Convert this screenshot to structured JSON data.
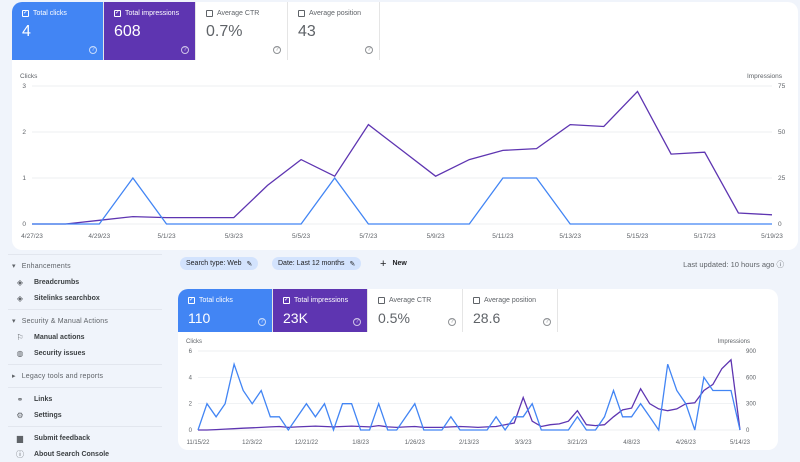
{
  "colors": {
    "clicks": "#4285f4",
    "impressions": "#5e35b1",
    "background": "#f0f4fb"
  },
  "top_metrics": [
    {
      "label": "Total clicks",
      "value": "4",
      "checked": true
    },
    {
      "label": "Total impressions",
      "value": "608",
      "checked": true
    },
    {
      "label": "Average CTR",
      "value": "0.7%",
      "checked": false
    },
    {
      "label": "Average position",
      "value": "43",
      "checked": false
    }
  ],
  "bottom_metrics": [
    {
      "label": "Total clicks",
      "value": "110",
      "checked": true
    },
    {
      "label": "Total impressions",
      "value": "23K",
      "checked": true
    },
    {
      "label": "Average CTR",
      "value": "0.5%",
      "checked": false
    },
    {
      "label": "Average position",
      "value": "28.6",
      "checked": false
    }
  ],
  "sidebar": {
    "enhancements": "Enhancements",
    "breadcrumbs": "Breadcrumbs",
    "sitelinks": "Sitelinks searchbox",
    "security": "Security & Manual Actions",
    "manual": "Manual actions",
    "issues": "Security issues",
    "legacy": "Legacy tools and reports",
    "links": "Links",
    "settings": "Settings",
    "feedback": "Submit feedback",
    "about": "About Search Console"
  },
  "filters": {
    "search_type": "Search type: Web",
    "date": "Date: Last 12 months",
    "new": "New",
    "last_updated": "Last updated: 10 hours ago"
  },
  "chart_data": [
    {
      "type": "line",
      "left_label": "Clicks",
      "right_label": "Impressions",
      "ylim_left": [
        0,
        3
      ],
      "yticks_left": [
        0,
        1,
        2,
        3
      ],
      "ylim_right": [
        0,
        75
      ],
      "yticks_right": [
        0,
        25,
        50,
        75
      ],
      "grid": true,
      "x": [
        "4/27/23",
        "4/28/23",
        "4/29/23",
        "4/30/23",
        "5/1/23",
        "5/2/23",
        "5/3/23",
        "5/4/23",
        "5/5/23",
        "5/6/23",
        "5/7/23",
        "5/8/23",
        "5/9/23",
        "5/10/23",
        "5/11/23",
        "5/12/23",
        "5/13/23",
        "5/14/23",
        "5/15/23",
        "5/16/23",
        "5/17/23",
        "5/18/23",
        "5/19/23"
      ],
      "xtick_labels": [
        "4/27/23",
        "4/29/23",
        "5/1/23",
        "5/3/23",
        "5/5/23",
        "5/7/23",
        "5/9/23",
        "5/11/23",
        "5/13/23",
        "5/15/23",
        "5/17/23",
        "5/19/23"
      ],
      "series": [
        {
          "name": "Clicks",
          "axis": "left",
          "values": [
            0,
            0,
            0,
            1,
            0,
            0,
            0,
            0,
            0,
            1,
            0,
            0,
            0,
            0,
            1,
            1,
            0,
            0,
            0,
            0,
            0,
            0,
            0
          ]
        },
        {
          "name": "Impressions",
          "axis": "right",
          "values": [
            0,
            0,
            2,
            4,
            3.5,
            3.5,
            3.5,
            21,
            35,
            26,
            54,
            40,
            26,
            35,
            40,
            41,
            54,
            53,
            72,
            38,
            39,
            6,
            5
          ]
        }
      ]
    },
    {
      "type": "line",
      "left_label": "Clicks",
      "right_label": "Impressions",
      "ylim_left": [
        0,
        6
      ],
      "yticks_left": [
        0,
        2,
        4,
        6
      ],
      "ylim_right": [
        0,
        900
      ],
      "yticks_right": [
        0,
        300,
        600,
        900
      ],
      "grid": true,
      "x": [
        "11/15/22",
        "11/18/22",
        "11/21/22",
        "11/24/22",
        "11/27/22",
        "11/30/22",
        "12/3/22",
        "12/6/22",
        "12/9/22",
        "12/12/22",
        "12/15/22",
        "12/18/22",
        "12/21/22",
        "12/24/22",
        "12/27/22",
        "12/30/22",
        "1/2/23",
        "1/5/23",
        "1/8/23",
        "1/11/23",
        "1/14/23",
        "1/17/23",
        "1/20/23",
        "1/23/23",
        "1/26/23",
        "1/29/23",
        "2/1/23",
        "2/4/23",
        "2/7/23",
        "2/10/23",
        "2/13/23",
        "2/16/23",
        "2/19/23",
        "2/22/23",
        "2/25/23",
        "2/28/23",
        "3/3/23",
        "3/6/23",
        "3/9/23",
        "3/12/23",
        "3/15/23",
        "3/18/23",
        "3/21/23",
        "3/24/23",
        "3/27/23",
        "3/30/23",
        "4/2/23",
        "4/5/23",
        "4/8/23",
        "4/11/23",
        "4/14/23",
        "4/17/23",
        "4/20/23",
        "4/23/23",
        "4/26/23",
        "4/29/23",
        "5/2/23",
        "5/5/23",
        "5/8/23",
        "5/11/23",
        "5/14/23"
      ],
      "xtick_labels": [
        "11/15/22",
        "12/3/22",
        "12/21/22",
        "1/8/23",
        "1/26/23",
        "2/13/23",
        "3/3/23",
        "3/21/23",
        "4/8/23",
        "4/26/23",
        "5/14/23"
      ],
      "series": [
        {
          "name": "Clicks",
          "axis": "left",
          "values": [
            0,
            2,
            1,
            2,
            5,
            3,
            2,
            3,
            1,
            1,
            0,
            1,
            2,
            1,
            2,
            0,
            2,
            2,
            0,
            0,
            2,
            0,
            0,
            1,
            2,
            0,
            0,
            0,
            1,
            0,
            0,
            0,
            0,
            1,
            0,
            1,
            1,
            2,
            0,
            0,
            0,
            0,
            1,
            0,
            0,
            1,
            3,
            1,
            1,
            2,
            1,
            0,
            5,
            3,
            2,
            0,
            4,
            3,
            3,
            3,
            0
          ]
        },
        {
          "name": "Impressions",
          "axis": "right",
          "values": [
            0,
            0,
            5,
            10,
            15,
            20,
            25,
            30,
            35,
            40,
            30,
            35,
            40,
            45,
            40,
            35,
            40,
            45,
            40,
            35,
            50,
            35,
            30,
            35,
            40,
            30,
            30,
            30,
            35,
            40,
            35,
            30,
            35,
            40,
            60,
            80,
            370,
            100,
            40,
            60,
            70,
            100,
            220,
            60,
            50,
            60,
            150,
            230,
            250,
            470,
            300,
            240,
            220,
            240,
            300,
            310,
            450,
            520,
            700,
            800,
            0
          ]
        }
      ]
    }
  ]
}
